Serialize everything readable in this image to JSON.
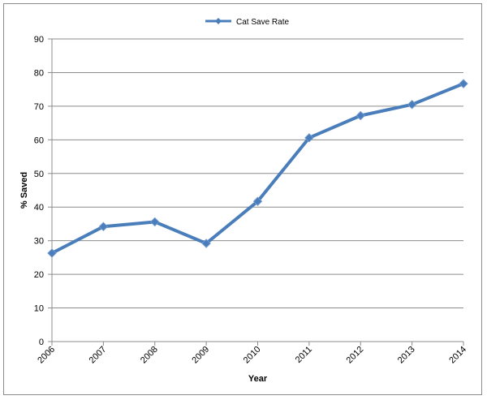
{
  "chart_data": {
    "type": "line",
    "title": "",
    "xlabel": "Year",
    "ylabel": "% Saved",
    "ylim": [
      0,
      90
    ],
    "y_ticks": [
      0,
      10,
      20,
      30,
      40,
      50,
      60,
      70,
      80,
      90
    ],
    "grid": "horizontal",
    "legend_position": "top",
    "categories": [
      "2006",
      "2007",
      "2008",
      "2009",
      "2010",
      "2011",
      "2012",
      "2013",
      "2014"
    ],
    "series": [
      {
        "name": "Cat Save Rate",
        "color": "#4a7ebb",
        "marker": "diamond",
        "values": [
          26.3,
          34.2,
          35.6,
          29.2,
          41.7,
          60.6,
          67.2,
          70.5,
          76.7
        ]
      }
    ]
  }
}
